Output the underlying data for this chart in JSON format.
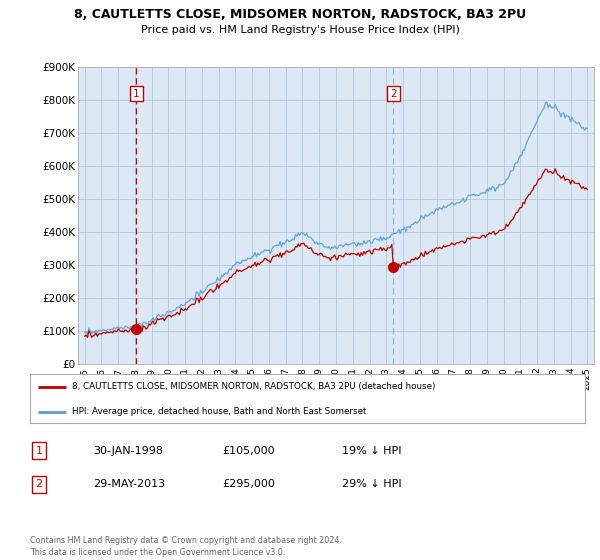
{
  "title_line1": "8, CAUTLETTS CLOSE, MIDSOMER NORTON, RADSTOCK, BA3 2PU",
  "title_line2": "Price paid vs. HM Land Registry's House Price Index (HPI)",
  "ylim": [
    0,
    900000
  ],
  "yticks": [
    0,
    100000,
    200000,
    300000,
    400000,
    500000,
    600000,
    700000,
    800000,
    900000
  ],
  "ytick_labels": [
    "£0",
    "£100K",
    "£200K",
    "£300K",
    "£400K",
    "£500K",
    "£600K",
    "£700K",
    "£800K",
    "£900K"
  ],
  "hpi_color": "#5b9bd5",
  "price_color": "#c00000",
  "vline1_color": "#cc0000",
  "vline2_color": "#8ab4d4",
  "sale1_year": 1998.08,
  "sale1_price": 105000,
  "sale1_label": "1",
  "sale2_year": 2013.42,
  "sale2_price": 295000,
  "sale2_label": "2",
  "plot_bg_color": "#dce9f5",
  "grid_color": "#b0c8e0",
  "legend_house_label": "8, CAUTLETTS CLOSE, MIDSOMER NORTON, RADSTOCK, BA3 2PU (detached house)",
  "legend_hpi_label": "HPI: Average price, detached house, Bath and North East Somerset",
  "annotation1_date": "30-JAN-1998",
  "annotation1_price": "£105,000",
  "annotation1_hpi": "19% ↓ HPI",
  "annotation2_date": "29-MAY-2013",
  "annotation2_price": "£295,000",
  "annotation2_hpi": "29% ↓ HPI",
  "footer": "Contains HM Land Registry data © Crown copyright and database right 2024.\nThis data is licensed under the Open Government Licence v3.0.",
  "background_color": "#ffffff"
}
